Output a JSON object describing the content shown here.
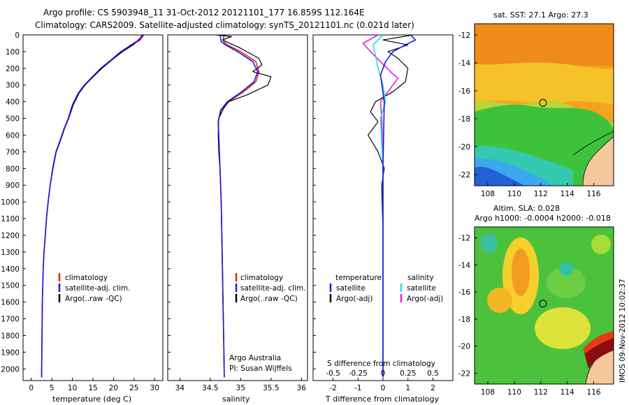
{
  "title": {
    "line1": "Argo profile: CS 5903948_11 31-Oct-2012 20121101_177 16.859S 112.164E",
    "line2": "Climatology: CARS2009. Satellite-adjusted climatology: synTS_20121101.nc (0.021d later)"
  },
  "colors": {
    "climatology": "#e02020",
    "satellite": "#1a1ae0",
    "argo": "#000000",
    "salinity_sat": "#22e0e0",
    "salinity_argo": "#e020e0"
  },
  "depth_axis": {
    "ticks": [
      "0",
      "100",
      "200",
      "300",
      "400",
      "500",
      "600",
      "700",
      "800",
      "900",
      "1000",
      "1100",
      "1200",
      "1300",
      "1400",
      "1500",
      "1600",
      "1700",
      "1800",
      "1900",
      "2000"
    ],
    "range": [
      0,
      2070
    ]
  },
  "temperature_panel": {
    "xlabel": "temperature (deg C)",
    "xticks": [
      "0",
      "5",
      "10",
      "15",
      "20",
      "25",
      "30"
    ],
    "xlim": [
      -2,
      32
    ],
    "legend": [
      "climatology",
      "satellite-adj. clim.",
      "Argo(..raw -QC)"
    ]
  },
  "salinity_panel": {
    "xlabel": "salinity",
    "xticks": [
      "34",
      "34.5",
      "35",
      "35.5",
      "36"
    ],
    "xlim": [
      33.8,
      36.1
    ],
    "legend": [
      "climatology",
      "satellite-adj. clim.",
      "Argo(..raw -QC)"
    ],
    "note1": "Argo Australia",
    "note2": "PI: Susan Wijffels"
  },
  "difference_panel": {
    "xlabel_bottom": "T difference from climatology",
    "xlabel_top": "S difference from climatology",
    "xticks_t": [
      "-2",
      "-1",
      "0",
      "1",
      "2"
    ],
    "xticks_s": [
      "-0.5",
      "-0.25",
      "0",
      "0.25",
      "0.5"
    ],
    "t_lim": [
      -2.8,
      2.8
    ],
    "legend_t_head": "temperature",
    "legend_s_head": "salinity",
    "legend_t": [
      "satellite",
      "Argo(-adj)"
    ],
    "legend_s": [
      "satellite",
      "Argo(-adj)"
    ]
  },
  "sst_map": {
    "title": "sat. SST: 27.1  Argo: 27.3",
    "yticks": [
      "-12",
      "-14",
      "-16",
      "-18",
      "-20",
      "-22"
    ],
    "xticks": [
      "108",
      "110",
      "112",
      "114",
      "116"
    ],
    "lon": [
      107,
      117.5
    ],
    "lat": [
      -22.8,
      -11.2
    ]
  },
  "sla_map": {
    "title1": "Altim. SLA: 0.028",
    "title2": "Argo h1000: -0.0004  h2000: -0.018",
    "yticks": [
      "-12",
      "-14",
      "-16",
      "-18",
      "-20",
      "-22"
    ],
    "xticks": [
      "108",
      "110",
      "112",
      "114",
      "116"
    ],
    "lon": [
      107,
      117.5
    ],
    "lat": [
      -22.8,
      -11.2
    ]
  },
  "float_position": {
    "lon": 112.164,
    "lat": -16.859
  },
  "footer": "IMOS 09-Nov-2012 10:02:37",
  "chart_data": [
    {
      "type": "line",
      "title": "",
      "xlabel": "temperature (deg C)",
      "ylabel": "",
      "ylim": [
        2070,
        0
      ],
      "series": [
        {
          "name": "climatology",
          "x": [
            27.3,
            26.5,
            24.5,
            22.0,
            19.5,
            17.0,
            15.0,
            13.0,
            11.5,
            10.0,
            9.0,
            8.0,
            7.2,
            6.0,
            5.2,
            4.6,
            4.1,
            3.7,
            3.4,
            3.1,
            2.9,
            2.7,
            2.6,
            2.5
          ],
          "y": [
            0,
            30,
            60,
            100,
            150,
            200,
            250,
            300,
            350,
            420,
            500,
            560,
            620,
            700,
            800,
            900,
            1000,
            1100,
            1200,
            1300,
            1400,
            1600,
            1800,
            2050
          ]
        },
        {
          "name": "satellite-adj. clim.",
          "x": [
            27.0,
            26.2,
            24.3,
            21.8,
            19.4,
            16.9,
            14.9,
            12.9,
            11.4,
            10.0,
            9.0,
            8.0,
            7.2,
            6.0,
            5.2,
            4.6,
            4.1,
            3.7,
            3.4,
            3.1,
            2.9,
            2.7,
            2.6,
            2.5
          ],
          "y": [
            0,
            30,
            60,
            100,
            150,
            200,
            250,
            300,
            350,
            420,
            500,
            560,
            620,
            700,
            800,
            900,
            1000,
            1100,
            1200,
            1300,
            1400,
            1600,
            1800,
            2050
          ]
        },
        {
          "name": "Argo(..raw -QC)",
          "x": [
            27.3,
            26.0,
            24.8,
            22.2,
            19.6,
            17.2,
            15.1,
            13.1,
            11.6,
            10.2,
            9.1,
            8.1,
            7.3,
            6.1,
            5.3,
            4.6,
            4.1,
            3.7,
            3.4,
            3.1,
            2.9,
            2.7,
            2.6,
            2.5
          ],
          "y": [
            0,
            30,
            60,
            100,
            150,
            200,
            250,
            300,
            350,
            420,
            500,
            560,
            620,
            700,
            800,
            900,
            1000,
            1100,
            1200,
            1300,
            1400,
            1600,
            1800,
            2050
          ]
        }
      ]
    },
    {
      "type": "line",
      "title": "",
      "xlabel": "salinity",
      "ylabel": "",
      "ylim": [
        2070,
        0
      ],
      "series": [
        {
          "name": "climatology",
          "x": [
            34.72,
            34.72,
            34.78,
            35.0,
            35.25,
            35.3,
            35.25,
            35.05,
            34.8,
            34.68,
            34.63,
            34.64,
            34.66,
            34.68,
            34.69,
            34.7,
            34.71,
            34.72,
            34.73
          ],
          "y": [
            0,
            40,
            60,
            100,
            160,
            220,
            280,
            340,
            400,
            450,
            520,
            600,
            800,
            1000,
            1200,
            1400,
            1600,
            1800,
            2050
          ]
        },
        {
          "name": "satellite-adj. clim.",
          "x": [
            34.66,
            34.68,
            34.75,
            34.95,
            35.2,
            35.28,
            35.22,
            35.02,
            34.78,
            34.67,
            34.63,
            34.64,
            34.66,
            34.68,
            34.69,
            34.7,
            34.71,
            34.72,
            34.73
          ],
          "y": [
            0,
            40,
            60,
            100,
            160,
            220,
            280,
            340,
            400,
            450,
            520,
            600,
            800,
            1000,
            1200,
            1400,
            1600,
            1800,
            2050
          ]
        },
        {
          "name": "Argo(..raw -QC)",
          "x": [
            34.6,
            34.85,
            34.7,
            35.0,
            35.3,
            35.35,
            35.2,
            35.5,
            35.45,
            35.1,
            34.8,
            34.72,
            34.64,
            34.63,
            34.64,
            34.66,
            34.68,
            34.69,
            34.7,
            34.71,
            34.72,
            34.73
          ],
          "y": [
            0,
            10,
            30,
            80,
            140,
            180,
            220,
            250,
            300,
            360,
            400,
            440,
            500,
            600,
            700,
            800,
            1000,
            1200,
            1400,
            1600,
            1800,
            2050
          ]
        }
      ]
    },
    {
      "type": "line",
      "title": "",
      "xlabel": "T difference from climatology",
      "ylabel": "",
      "ylim": [
        2070,
        0
      ],
      "series": [
        {
          "name": "temperature satellite",
          "x": [
            1.1,
            1.3,
            0.9,
            0.4,
            0.1,
            -0.1,
            0.05,
            0.0,
            0.0,
            0.0,
            0.0
          ],
          "y": [
            0,
            30,
            60,
            100,
            160,
            240,
            400,
            800,
            1200,
            1600,
            2050
          ]
        },
        {
          "name": "temperature Argo(-adj)",
          "x": [
            1.2,
            0.0,
            1.0,
            0.2,
            0.6,
            1.0,
            0.9,
            0.4,
            -0.3,
            -0.5,
            -0.2,
            -0.6,
            -0.2,
            0.05,
            -0.05,
            0.0,
            0.0,
            0.0
          ],
          "y": [
            0,
            30,
            60,
            100,
            140,
            200,
            280,
            340,
            400,
            460,
            520,
            600,
            700,
            800,
            900,
            1200,
            1600,
            2050
          ]
        },
        {
          "name": "salinity satellite",
          "x": [
            0.0,
            -0.4,
            -0.3,
            -0.2,
            0.0,
            0.1,
            -0.1,
            0.0,
            0.0,
            0.0,
            0.0
          ],
          "y": [
            0,
            60,
            120,
            200,
            300,
            400,
            500,
            800,
            1200,
            1600,
            2050
          ]
        },
        {
          "name": "salinity Argo(-adj)",
          "x": [
            -0.2,
            -0.8,
            -0.5,
            -0.1,
            0.3,
            0.6,
            0.3,
            -0.1,
            -0.05,
            0.0,
            0.0,
            0.0
          ],
          "y": [
            0,
            50,
            100,
            160,
            220,
            260,
            320,
            400,
            500,
            800,
            1400,
            2050
          ]
        }
      ]
    }
  ]
}
